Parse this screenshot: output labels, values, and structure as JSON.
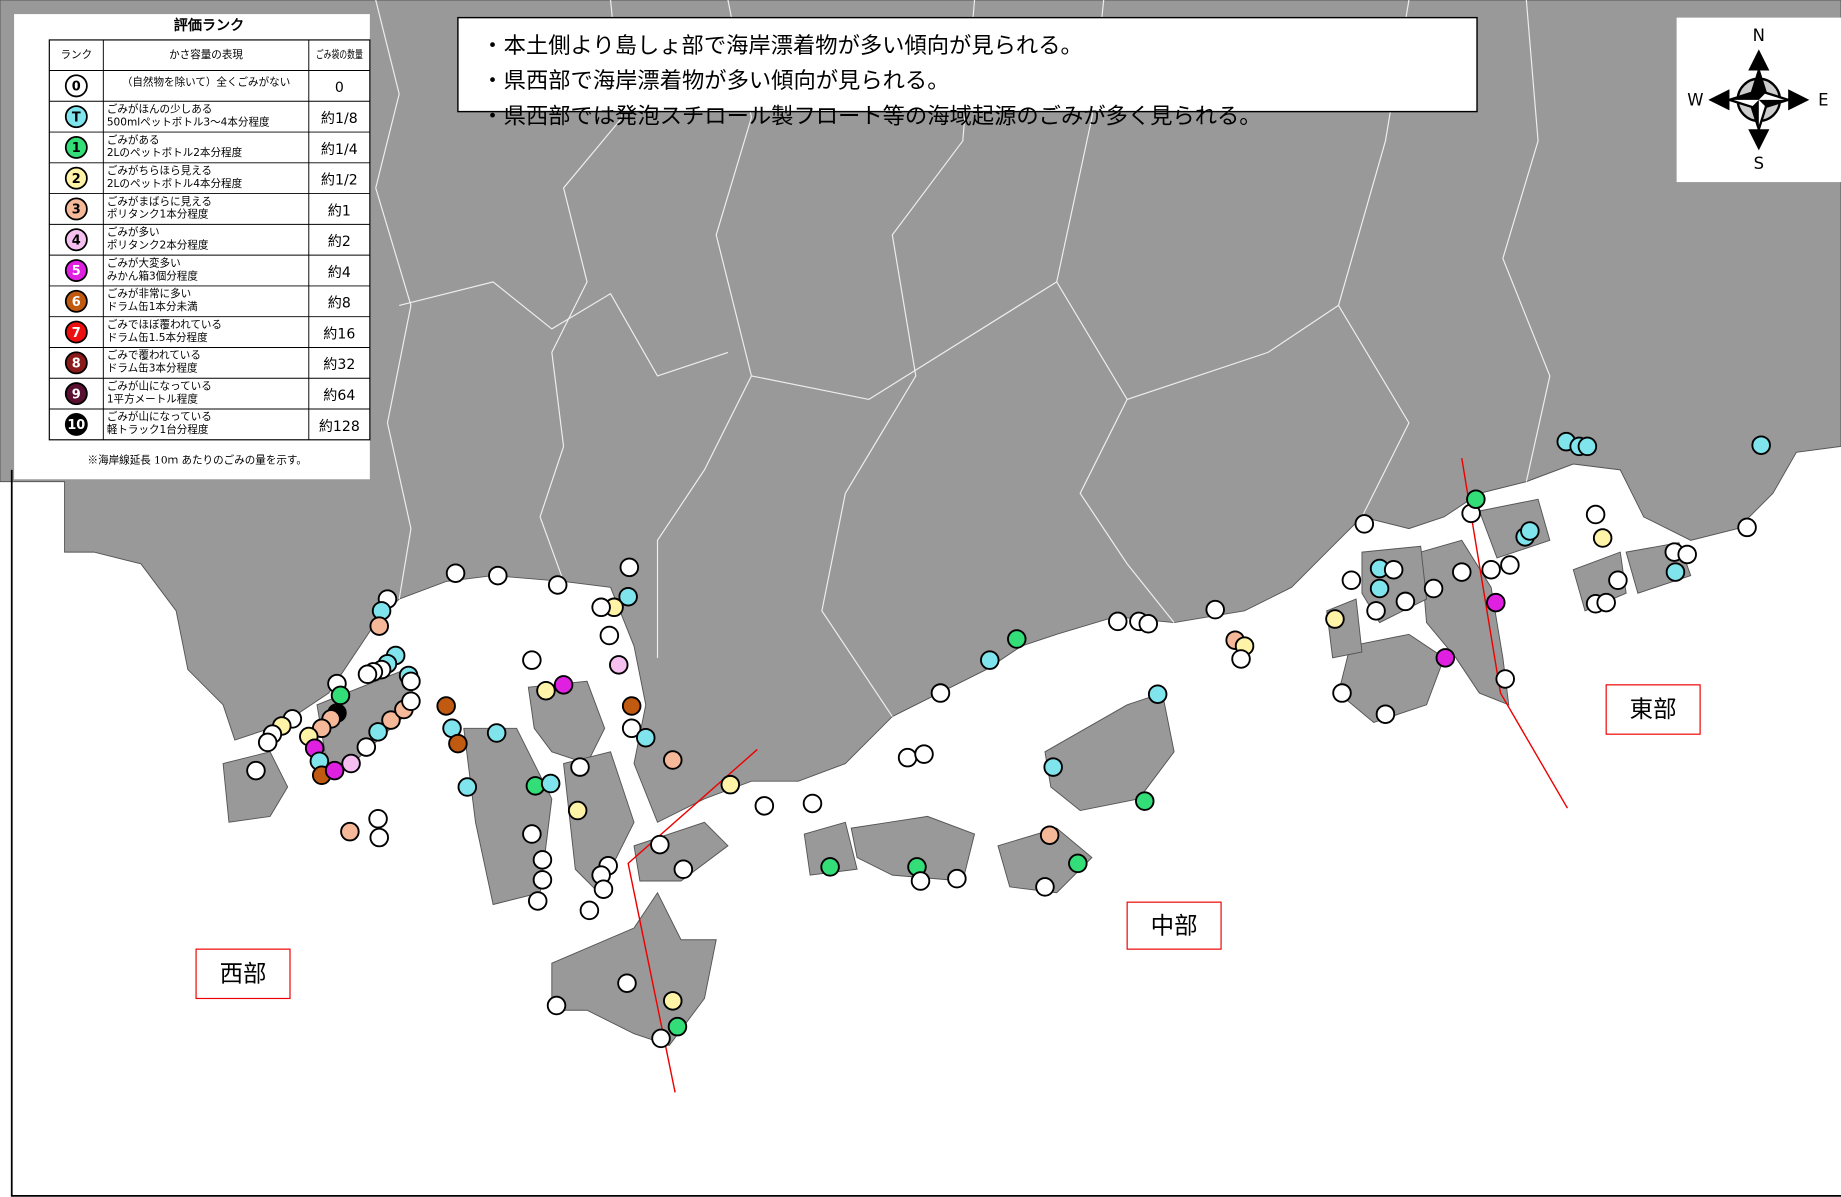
{
  "legend": {
    "title": "評価ランク",
    "headers": [
      "ランク",
      "かさ容量の表現",
      "ごみ袋の数量"
    ],
    "rows": [
      {
        "rank": "0",
        "description": [
          "（自然物を除いて）全くごみがない"
        ],
        "amount": "0",
        "color": "#ffffff"
      },
      {
        "rank": "T",
        "description": [
          "ごみがほんの少しある",
          "500mlペットボトル3～4本分程度"
        ],
        "amount": "約1/8",
        "color": "#80e4ec"
      },
      {
        "rank": "1",
        "description": [
          "ごみがある",
          "2Lのペットボトル2本分程度"
        ],
        "amount": "約1/4",
        "color": "#33dd77"
      },
      {
        "rank": "2",
        "description": [
          "ごみがちらほら見える",
          "2Lのペットボトル4本分程度"
        ],
        "amount": "約1/2",
        "color": "#fff3a8"
      },
      {
        "rank": "3",
        "description": [
          "ごみがまばらに見える",
          "ポリタンク1本分程度"
        ],
        "amount": "約1",
        "color": "#f5b898"
      },
      {
        "rank": "4",
        "description": [
          "ごみが多い",
          "ポリタンク2本分程度"
        ],
        "amount": "約2",
        "color": "#f5c0f0"
      },
      {
        "rank": "5",
        "description": [
          "ごみが大変多い",
          "みかん箱3個分程度"
        ],
        "amount": "約4",
        "color": "#e020e0"
      },
      {
        "rank": "6",
        "description": [
          "ごみが非常に多い",
          "ドラム缶1本分未満"
        ],
        "amount": "約8",
        "color": "#c05a10"
      },
      {
        "rank": "7",
        "description": [
          "ごみでほぼ覆われている",
          "ドラム缶1.5本分程度"
        ],
        "amount": "約16",
        "color": "#ee1010"
      },
      {
        "rank": "8",
        "description": [
          "ごみで覆われている",
          "ドラム缶3本分程度"
        ],
        "amount": "約32",
        "color": "#8b1a1a"
      },
      {
        "rank": "9",
        "description": [
          "ごみが山になっている",
          "1平方メートル程度"
        ],
        "amount": "約64",
        "color": "#5a1030"
      },
      {
        "rank": "10",
        "description": [
          "ごみが山になっている",
          "軽トラック1台分程度"
        ],
        "amount": "約128",
        "color": "#000000"
      }
    ],
    "note": "※海岸線延長 10ｍ あたりのごみの量を示す。"
  },
  "notes": [
    "・本土側より島しょ部で海岸漂着物が多い傾向が見られる。",
    "・県西部で海岸漂着物が多い傾向が見られる。",
    "・県西部では発泡スチロール製フロート等の海域起源のごみが多く見られる。"
  ],
  "compass": {
    "n": "N",
    "s": "S",
    "w": "W",
    "e": "E"
  },
  "regions": [
    "西部",
    "中部",
    "東部"
  ]
}
